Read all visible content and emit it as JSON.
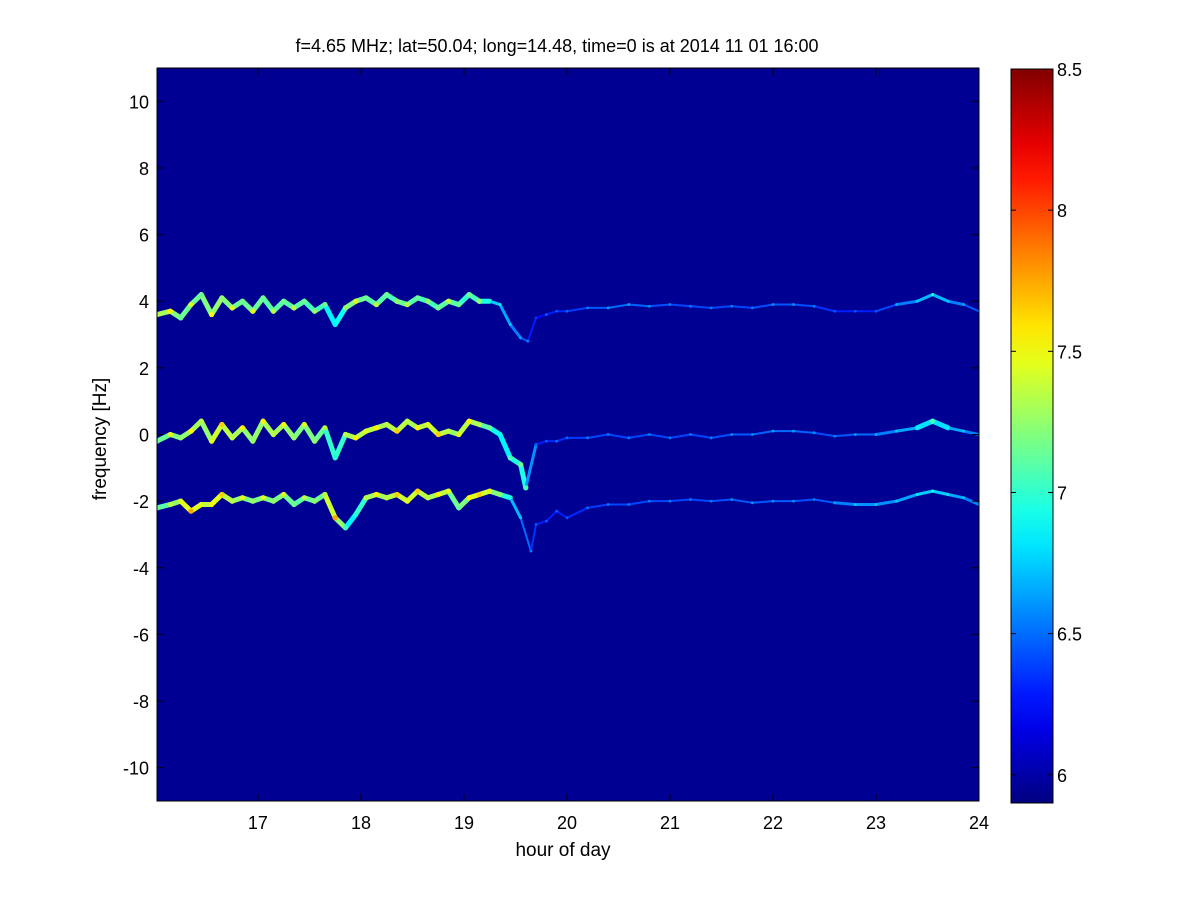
{
  "chart_data": {
    "type": "heatmap",
    "title": "f=4.65 MHz;  lat=50.04; long=14.48, time=0 is at 2014 11 01 16:00",
    "xlabel": "hour of day",
    "ylabel": "frequency [Hz]",
    "xlim": [
      16.02,
      24.0
    ],
    "ylim": [
      -11.0,
      11.0
    ],
    "xticks": [
      17,
      18,
      19,
      20,
      21,
      22,
      23,
      24
    ],
    "yticks": [
      -10,
      -8,
      -6,
      -4,
      -2,
      0,
      2,
      4,
      6,
      8,
      10
    ],
    "colorbar": {
      "colormap": "jet",
      "range": [
        5.9,
        8.5
      ],
      "ticks": [
        6,
        6.5,
        7,
        7.5,
        8,
        8.5
      ],
      "background_value": 5.95
    },
    "series": [
      {
        "x": [
          16.02,
          16.15,
          16.25,
          16.35,
          16.45,
          16.55,
          16.65,
          16.75,
          16.85,
          16.95,
          17.05,
          17.15,
          17.25,
          17.35,
          17.45,
          17.55,
          17.65,
          17.75,
          17.85,
          17.95,
          18.05,
          18.15,
          18.25,
          18.35,
          18.45,
          18.55,
          18.65,
          18.75,
          18.85,
          18.95,
          19.05,
          19.15,
          19.25,
          19.35,
          19.45,
          19.55,
          19.62,
          19.7,
          19.8,
          19.9,
          20.0,
          20.2,
          20.4,
          20.6,
          20.8,
          21.0,
          21.2,
          21.4,
          21.6,
          21.8,
          22.0,
          22.2,
          22.4,
          22.6,
          22.8,
          23.0,
          23.2,
          23.4,
          23.55,
          23.7,
          23.85,
          24.0
        ],
        "y": [
          3.6,
          3.7,
          3.5,
          3.9,
          4.2,
          3.6,
          4.1,
          3.8,
          4.0,
          3.7,
          4.1,
          3.7,
          4.0,
          3.8,
          4.0,
          3.7,
          3.9,
          3.3,
          3.8,
          4.0,
          4.1,
          3.9,
          4.2,
          4.0,
          3.9,
          4.1,
          4.0,
          3.8,
          4.0,
          3.9,
          4.2,
          4.0,
          4.0,
          3.9,
          3.3,
          2.9,
          2.8,
          3.5,
          3.6,
          3.7,
          3.7,
          3.8,
          3.8,
          3.9,
          3.85,
          3.9,
          3.85,
          3.8,
          3.85,
          3.8,
          3.9,
          3.9,
          3.85,
          3.7,
          3.7,
          3.7,
          3.9,
          4.0,
          4.2,
          4.0,
          3.9,
          3.7
        ],
        "intensity": [
          7.2,
          7.4,
          7.0,
          7.3,
          7.0,
          7.4,
          7.1,
          7.3,
          7.0,
          7.3,
          7.0,
          7.2,
          7.0,
          7.2,
          7.0,
          7.1,
          7.0,
          6.7,
          7.1,
          7.3,
          7.0,
          7.2,
          7.0,
          7.1,
          7.2,
          7.0,
          7.1,
          7.0,
          7.2,
          7.0,
          7.0,
          7.1,
          6.8,
          6.7,
          6.6,
          6.5,
          6.4,
          6.2,
          6.3,
          6.3,
          6.35,
          6.4,
          6.5,
          6.5,
          6.45,
          6.4,
          6.4,
          6.4,
          6.4,
          6.4,
          6.45,
          6.45,
          6.4,
          6.3,
          6.3,
          6.3,
          6.5,
          6.6,
          6.8,
          6.6,
          6.5,
          6.4
        ]
      },
      {
        "x": [
          16.02,
          16.15,
          16.25,
          16.35,
          16.45,
          16.55,
          16.65,
          16.75,
          16.85,
          16.95,
          17.05,
          17.15,
          17.25,
          17.35,
          17.45,
          17.55,
          17.65,
          17.75,
          17.85,
          17.95,
          18.05,
          18.15,
          18.25,
          18.35,
          18.45,
          18.55,
          18.65,
          18.75,
          18.85,
          18.95,
          19.05,
          19.15,
          19.25,
          19.35,
          19.45,
          19.55,
          19.6,
          19.7,
          19.8,
          19.9,
          20.0,
          20.2,
          20.4,
          20.6,
          20.8,
          21.0,
          21.2,
          21.4,
          21.6,
          21.8,
          22.0,
          22.2,
          22.4,
          22.6,
          22.8,
          23.0,
          23.2,
          23.4,
          23.55,
          23.7,
          23.85,
          24.0
        ],
        "y": [
          -0.2,
          0.0,
          -0.1,
          0.1,
          0.4,
          -0.2,
          0.3,
          -0.1,
          0.2,
          -0.2,
          0.4,
          0.0,
          0.3,
          -0.1,
          0.3,
          -0.2,
          0.2,
          -0.7,
          0.0,
          -0.1,
          0.1,
          0.2,
          0.3,
          0.1,
          0.4,
          0.2,
          0.3,
          0.0,
          0.1,
          0.0,
          0.4,
          0.3,
          0.2,
          0.0,
          -0.7,
          -0.9,
          -1.6,
          -0.3,
          -0.2,
          -0.2,
          -0.1,
          -0.1,
          0.0,
          -0.1,
          0.0,
          -0.1,
          0.0,
          -0.1,
          0.0,
          0.0,
          0.1,
          0.1,
          0.05,
          -0.05,
          0.0,
          0.0,
          0.1,
          0.2,
          0.4,
          0.2,
          0.1,
          0.0
        ],
        "intensity": [
          7.0,
          7.3,
          7.1,
          7.4,
          7.2,
          7.3,
          7.5,
          7.2,
          7.4,
          7.1,
          7.4,
          7.2,
          7.4,
          7.1,
          7.3,
          7.1,
          7.2,
          6.8,
          7.2,
          7.4,
          7.3,
          7.4,
          7.2,
          7.5,
          7.2,
          7.4,
          7.3,
          7.5,
          7.2,
          7.3,
          7.4,
          7.2,
          7.0,
          6.8,
          6.9,
          7.0,
          6.9,
          6.3,
          6.3,
          6.35,
          6.35,
          6.4,
          6.4,
          6.4,
          6.4,
          6.4,
          6.4,
          6.4,
          6.45,
          6.45,
          6.5,
          6.5,
          6.45,
          6.4,
          6.5,
          6.5,
          6.6,
          6.7,
          6.9,
          6.7,
          6.6,
          6.5
        ]
      },
      {
        "x": [
          16.02,
          16.15,
          16.25,
          16.35,
          16.45,
          16.55,
          16.65,
          16.75,
          16.85,
          16.95,
          17.05,
          17.15,
          17.25,
          17.35,
          17.45,
          17.55,
          17.65,
          17.75,
          17.85,
          17.95,
          18.05,
          18.15,
          18.25,
          18.35,
          18.45,
          18.55,
          18.65,
          18.75,
          18.85,
          18.95,
          19.05,
          19.15,
          19.25,
          19.35,
          19.45,
          19.55,
          19.65,
          19.7,
          19.8,
          19.9,
          20.0,
          20.2,
          20.4,
          20.6,
          20.8,
          21.0,
          21.2,
          21.4,
          21.6,
          21.8,
          22.0,
          22.2,
          22.4,
          22.6,
          22.8,
          23.0,
          23.2,
          23.4,
          23.55,
          23.7,
          23.85,
          24.0
        ],
        "y": [
          -2.2,
          -2.1,
          -2.0,
          -2.3,
          -2.1,
          -2.1,
          -1.8,
          -2.0,
          -1.9,
          -2.0,
          -1.9,
          -2.0,
          -1.8,
          -2.1,
          -1.9,
          -2.0,
          -1.8,
          -2.5,
          -2.8,
          -2.4,
          -1.9,
          -1.8,
          -1.9,
          -1.8,
          -2.0,
          -1.7,
          -1.9,
          -1.8,
          -1.7,
          -2.2,
          -1.9,
          -1.8,
          -1.7,
          -1.8,
          -1.9,
          -2.5,
          -3.5,
          -2.7,
          -2.6,
          -2.3,
          -2.5,
          -2.2,
          -2.1,
          -2.1,
          -2.0,
          -2.0,
          -1.95,
          -2.0,
          -1.95,
          -2.05,
          -2.0,
          -2.0,
          -1.95,
          -2.05,
          -2.1,
          -2.1,
          -2.0,
          -1.8,
          -1.7,
          -1.8,
          -1.9,
          -2.1
        ],
        "intensity": [
          7.0,
          7.2,
          7.3,
          7.6,
          7.3,
          7.4,
          7.5,
          7.2,
          7.3,
          7.1,
          7.3,
          7.1,
          7.3,
          7.0,
          7.2,
          7.1,
          7.2,
          7.6,
          6.9,
          6.8,
          7.2,
          7.4,
          7.2,
          7.5,
          7.3,
          7.5,
          7.2,
          7.4,
          7.3,
          7.0,
          7.4,
          7.5,
          7.3,
          7.1,
          6.8,
          6.6,
          6.4,
          6.3,
          6.3,
          6.3,
          6.3,
          6.35,
          6.4,
          6.4,
          6.4,
          6.4,
          6.4,
          6.4,
          6.45,
          6.45,
          6.45,
          6.45,
          6.4,
          6.5,
          6.6,
          6.6,
          6.6,
          6.7,
          6.8,
          6.7,
          6.6,
          6.5
        ]
      }
    ]
  }
}
